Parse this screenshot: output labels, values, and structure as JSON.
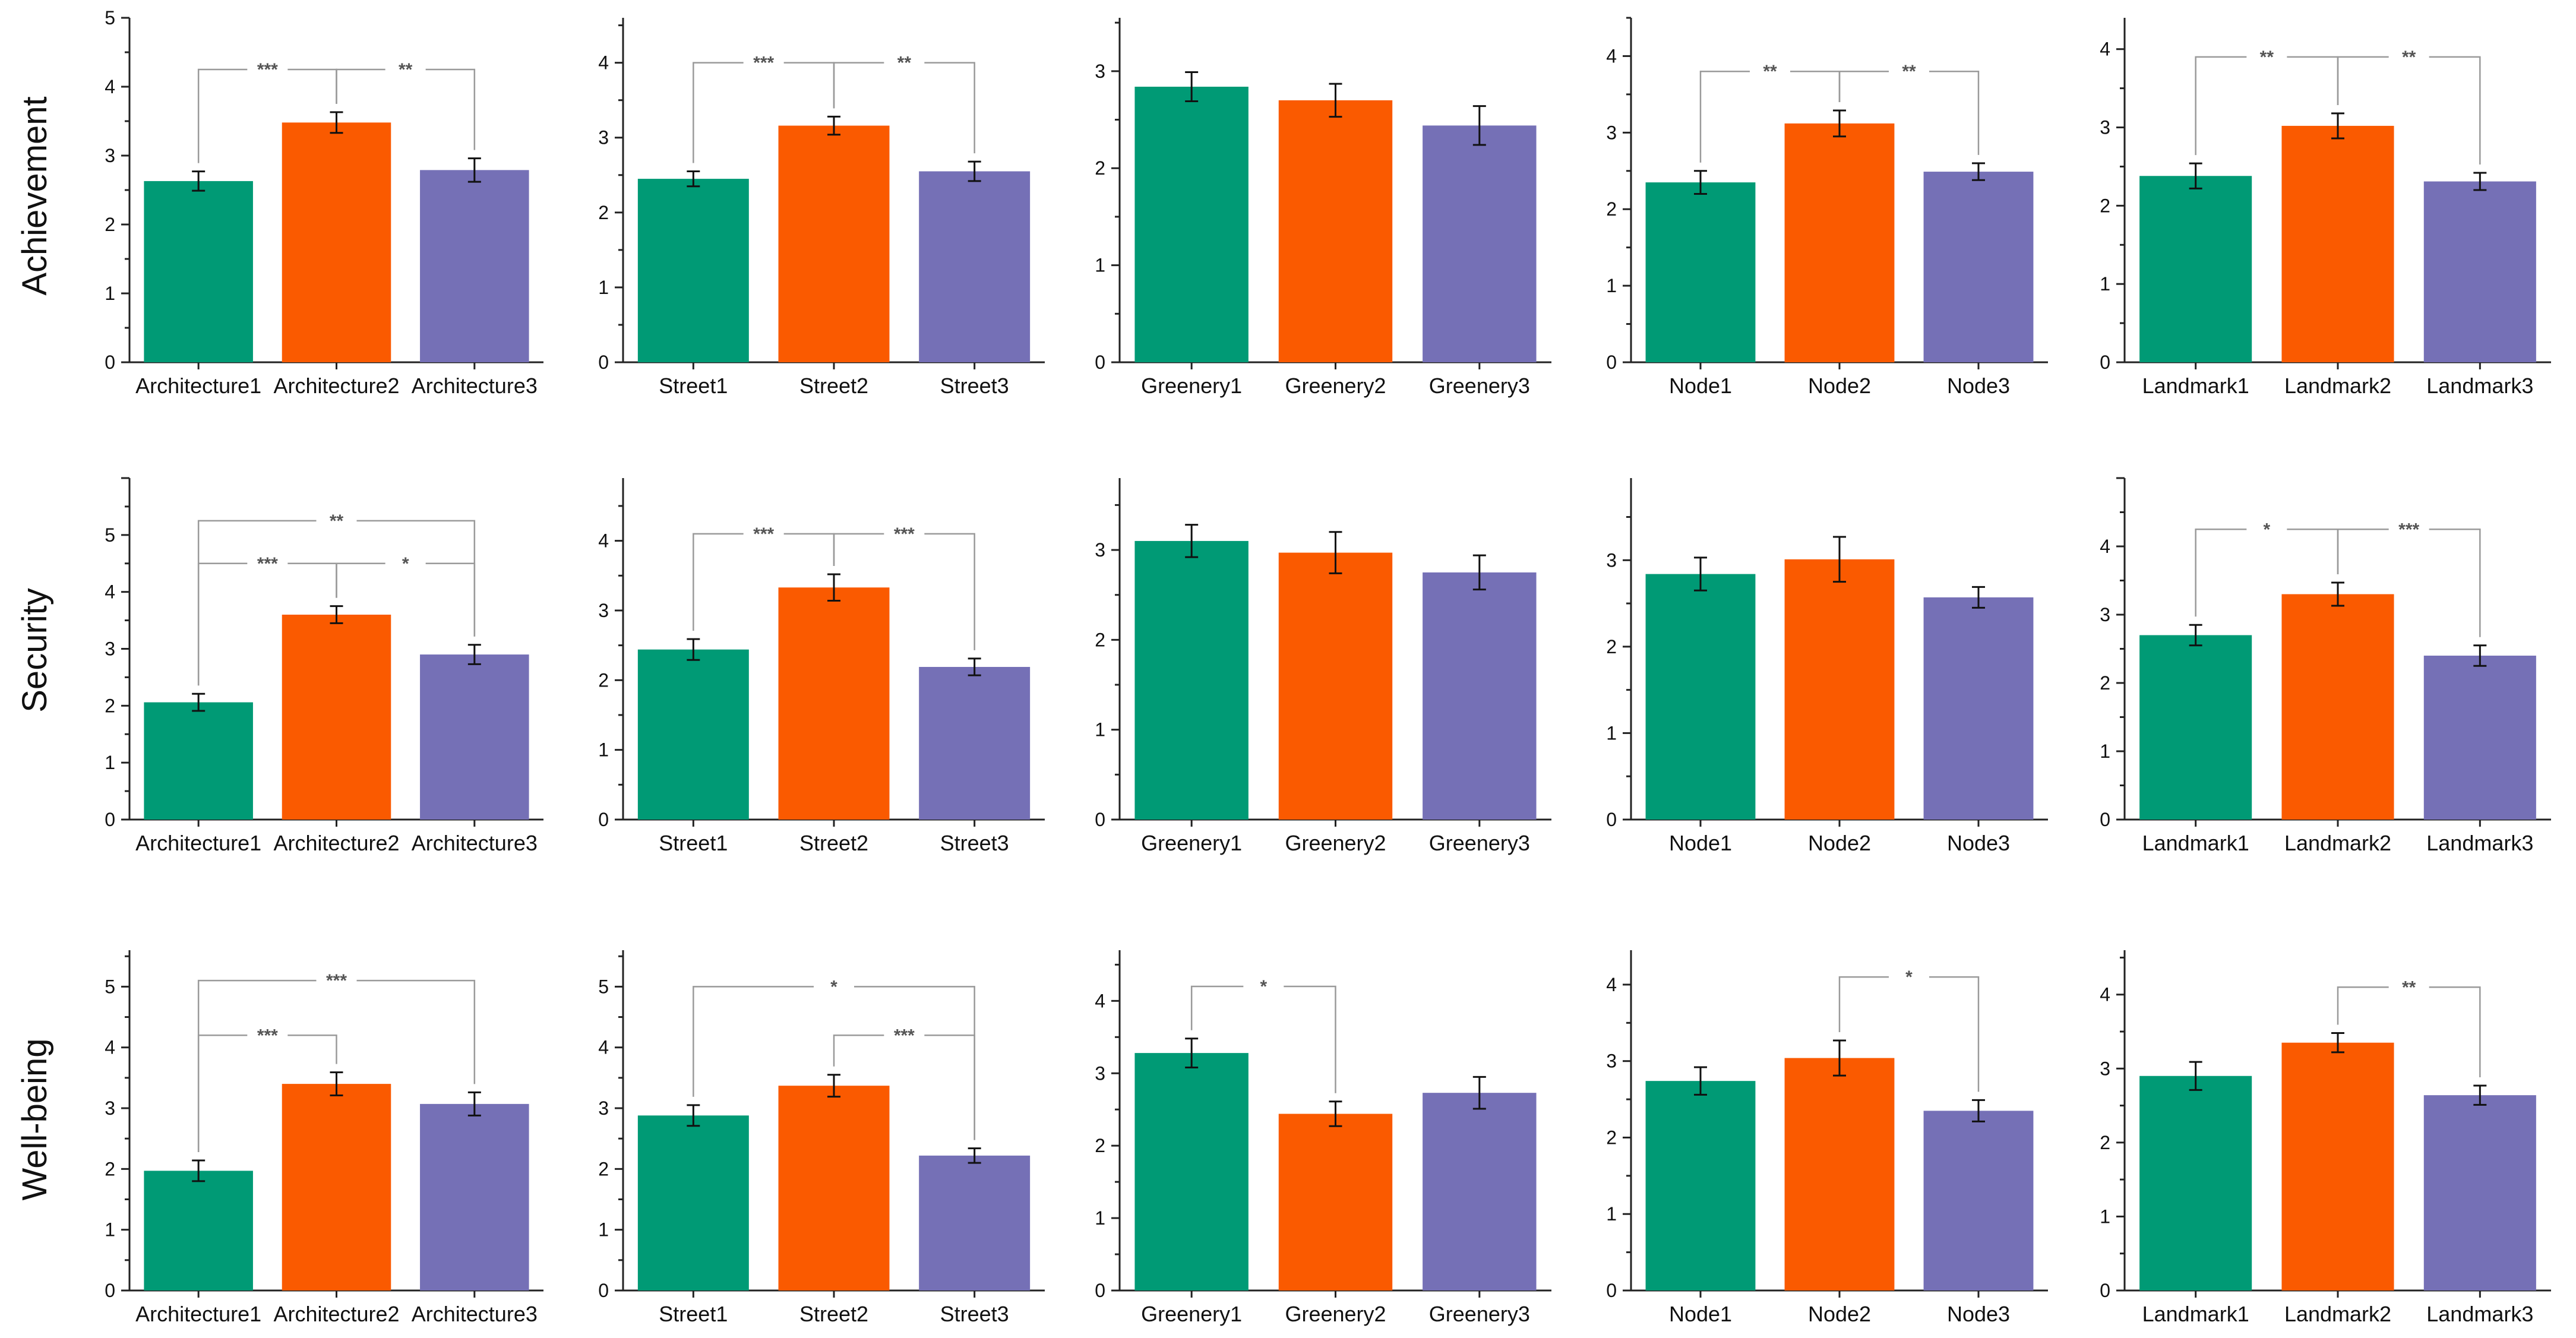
{
  "colors": {
    "c1": "#009a75",
    "c2": "#fa5a00",
    "c3": "#7570b6"
  },
  "row_labels": [
    "Achievement",
    "Security",
    "Well-being"
  ],
  "chart_data": [
    {
      "type": "bar",
      "row": "Achievement",
      "categories": [
        "Architecture1",
        "Architecture2",
        "Architecture3"
      ],
      "values": [
        2.63,
        3.48,
        2.79
      ],
      "errors": [
        0.14,
        0.15,
        0.17
      ],
      "ylim": [
        0,
        5
      ],
      "yticks": [
        0,
        1,
        2,
        3,
        4,
        5
      ],
      "annotations": [
        {
          "from": 0,
          "to": 1,
          "label": "***",
          "level": 4.25
        },
        {
          "from": 1,
          "to": 2,
          "label": "**",
          "level": 4.25
        }
      ]
    },
    {
      "type": "bar",
      "row": "Achievement",
      "categories": [
        "Street1",
        "Street2",
        "Street3"
      ],
      "values": [
        2.45,
        3.16,
        2.55
      ],
      "errors": [
        0.1,
        0.12,
        0.13
      ],
      "ylim": [
        0,
        4.6
      ],
      "yticks": [
        0,
        1,
        2,
        3,
        4
      ],
      "annotations": [
        {
          "from": 0,
          "to": 1,
          "label": "***",
          "level": 4.0
        },
        {
          "from": 1,
          "to": 2,
          "label": "**",
          "level": 4.0
        }
      ]
    },
    {
      "type": "bar",
      "row": "Achievement",
      "categories": [
        "Greenery1",
        "Greenery2",
        "Greenery3"
      ],
      "values": [
        2.84,
        2.7,
        2.44
      ],
      "errors": [
        0.15,
        0.17,
        0.2
      ],
      "ylim": [
        0,
        3.55
      ],
      "yticks": [
        0,
        1,
        2,
        3
      ],
      "annotations": []
    },
    {
      "type": "bar",
      "row": "Achievement",
      "categories": [
        "Node1",
        "Node2",
        "Node3"
      ],
      "values": [
        2.35,
        3.12,
        2.49
      ],
      "errors": [
        0.15,
        0.17,
        0.11
      ],
      "ylim": [
        0,
        4.5
      ],
      "yticks": [
        0,
        1,
        2,
        3,
        4
      ],
      "annotations": [
        {
          "from": 0,
          "to": 1,
          "label": "**",
          "level": 3.8
        },
        {
          "from": 1,
          "to": 2,
          "label": "**",
          "level": 3.8
        }
      ]
    },
    {
      "type": "bar",
      "row": "Achievement",
      "categories": [
        "Landmark1",
        "Landmark2",
        "Landmark3"
      ],
      "values": [
        2.38,
        3.02,
        2.31
      ],
      "errors": [
        0.16,
        0.16,
        0.11
      ],
      "ylim": [
        0,
        4.4
      ],
      "yticks": [
        0,
        1,
        2,
        3,
        4
      ],
      "annotations": [
        {
          "from": 0,
          "to": 1,
          "label": "**",
          "level": 3.9
        },
        {
          "from": 1,
          "to": 2,
          "label": "**",
          "level": 3.9
        }
      ]
    },
    {
      "type": "bar",
      "row": "Security",
      "categories": [
        "Architecture1",
        "Architecture2",
        "Architecture3"
      ],
      "values": [
        2.06,
        3.6,
        2.9
      ],
      "errors": [
        0.15,
        0.15,
        0.17
      ],
      "ylim": [
        0,
        6
      ],
      "yticks": [
        0,
        1,
        2,
        3,
        4,
        5
      ],
      "annotations": [
        {
          "from": 0,
          "to": 2,
          "label": "**",
          "level": 5.25
        },
        {
          "from": 0,
          "to": 1,
          "label": "***",
          "level": 4.5
        },
        {
          "from": 1,
          "to": 2,
          "label": "*",
          "level": 4.5
        }
      ]
    },
    {
      "type": "bar",
      "row": "Security",
      "categories": [
        "Street1",
        "Street2",
        "Street3"
      ],
      "values": [
        2.44,
        3.33,
        2.19
      ],
      "errors": [
        0.15,
        0.19,
        0.12
      ],
      "ylim": [
        0,
        4.9
      ],
      "yticks": [
        0,
        1,
        2,
        3,
        4
      ],
      "annotations": [
        {
          "from": 0,
          "to": 1,
          "label": "***",
          "level": 4.1
        },
        {
          "from": 1,
          "to": 2,
          "label": "***",
          "level": 4.1
        }
      ]
    },
    {
      "type": "bar",
      "row": "Security",
      "categories": [
        "Greenery1",
        "Greenery2",
        "Greenery3"
      ],
      "values": [
        3.1,
        2.97,
        2.75
      ],
      "errors": [
        0.18,
        0.23,
        0.19
      ],
      "ylim": [
        0,
        3.8
      ],
      "yticks": [
        0,
        1,
        2,
        3
      ],
      "annotations": []
    },
    {
      "type": "bar",
      "row": "Security",
      "categories": [
        "Node1",
        "Node2",
        "Node3"
      ],
      "values": [
        2.84,
        3.01,
        2.57
      ],
      "errors": [
        0.19,
        0.26,
        0.12
      ],
      "ylim": [
        0,
        3.95
      ],
      "yticks": [
        0,
        1,
        2,
        3
      ],
      "annotations": []
    },
    {
      "type": "bar",
      "row": "Security",
      "categories": [
        "Landmark1",
        "Landmark2",
        "Landmark3"
      ],
      "values": [
        2.7,
        3.3,
        2.4
      ],
      "errors": [
        0.15,
        0.17,
        0.15
      ],
      "ylim": [
        0,
        5.0
      ],
      "yticks": [
        0,
        1,
        2,
        3,
        4
      ],
      "annotations": [
        {
          "from": 0,
          "to": 1,
          "label": "*",
          "level": 4.25
        },
        {
          "from": 1,
          "to": 2,
          "label": "***",
          "level": 4.25
        }
      ]
    },
    {
      "type": "bar",
      "row": "Well-being",
      "categories": [
        "Architecture1",
        "Architecture2",
        "Architecture3"
      ],
      "values": [
        1.97,
        3.4,
        3.07
      ],
      "errors": [
        0.17,
        0.19,
        0.19
      ],
      "ylim": [
        0,
        5.6
      ],
      "yticks": [
        0,
        1,
        2,
        3,
        4,
        5
      ],
      "annotations": [
        {
          "from": 0,
          "to": 2,
          "label": "***",
          "level": 5.1
        },
        {
          "from": 0,
          "to": 1,
          "label": "***",
          "level": 4.2
        }
      ]
    },
    {
      "type": "bar",
      "row": "Well-being",
      "categories": [
        "Street1",
        "Street2",
        "Street3"
      ],
      "values": [
        2.88,
        3.37,
        2.22
      ],
      "errors": [
        0.17,
        0.18,
        0.12
      ],
      "ylim": [
        0,
        5.6
      ],
      "yticks": [
        0,
        1,
        2,
        3,
        4,
        5
      ],
      "annotations": [
        {
          "from": 0,
          "to": 2,
          "label": "*",
          "level": 5.0
        },
        {
          "from": 1,
          "to": 2,
          "label": "***",
          "level": 4.2
        }
      ]
    },
    {
      "type": "bar",
      "row": "Well-being",
      "categories": [
        "Greenery1",
        "Greenery2",
        "Greenery3"
      ],
      "values": [
        3.28,
        2.44,
        2.73
      ],
      "errors": [
        0.2,
        0.17,
        0.22
      ],
      "ylim": [
        0,
        4.7
      ],
      "yticks": [
        0,
        1,
        2,
        3,
        4
      ],
      "annotations": [
        {
          "from": 0,
          "to": 1,
          "label": "*",
          "level": 4.2
        }
      ]
    },
    {
      "type": "bar",
      "row": "Well-being",
      "categories": [
        "Node1",
        "Node2",
        "Node3"
      ],
      "values": [
        2.74,
        3.04,
        2.35
      ],
      "errors": [
        0.18,
        0.23,
        0.14
      ],
      "ylim": [
        0,
        4.45
      ],
      "yticks": [
        0,
        1,
        2,
        3,
        4
      ],
      "annotations": [
        {
          "from": 1,
          "to": 2,
          "label": "*",
          "level": 4.1
        }
      ]
    },
    {
      "type": "bar",
      "row": "Well-being",
      "categories": [
        "Landmark1",
        "Landmark2",
        "Landmark3"
      ],
      "values": [
        2.9,
        3.35,
        2.64
      ],
      "errors": [
        0.19,
        0.13,
        0.13
      ],
      "ylim": [
        0,
        4.6
      ],
      "yticks": [
        0,
        1,
        2,
        3,
        4
      ],
      "annotations": [
        {
          "from": 1,
          "to": 2,
          "label": "**",
          "level": 4.1
        }
      ]
    }
  ]
}
